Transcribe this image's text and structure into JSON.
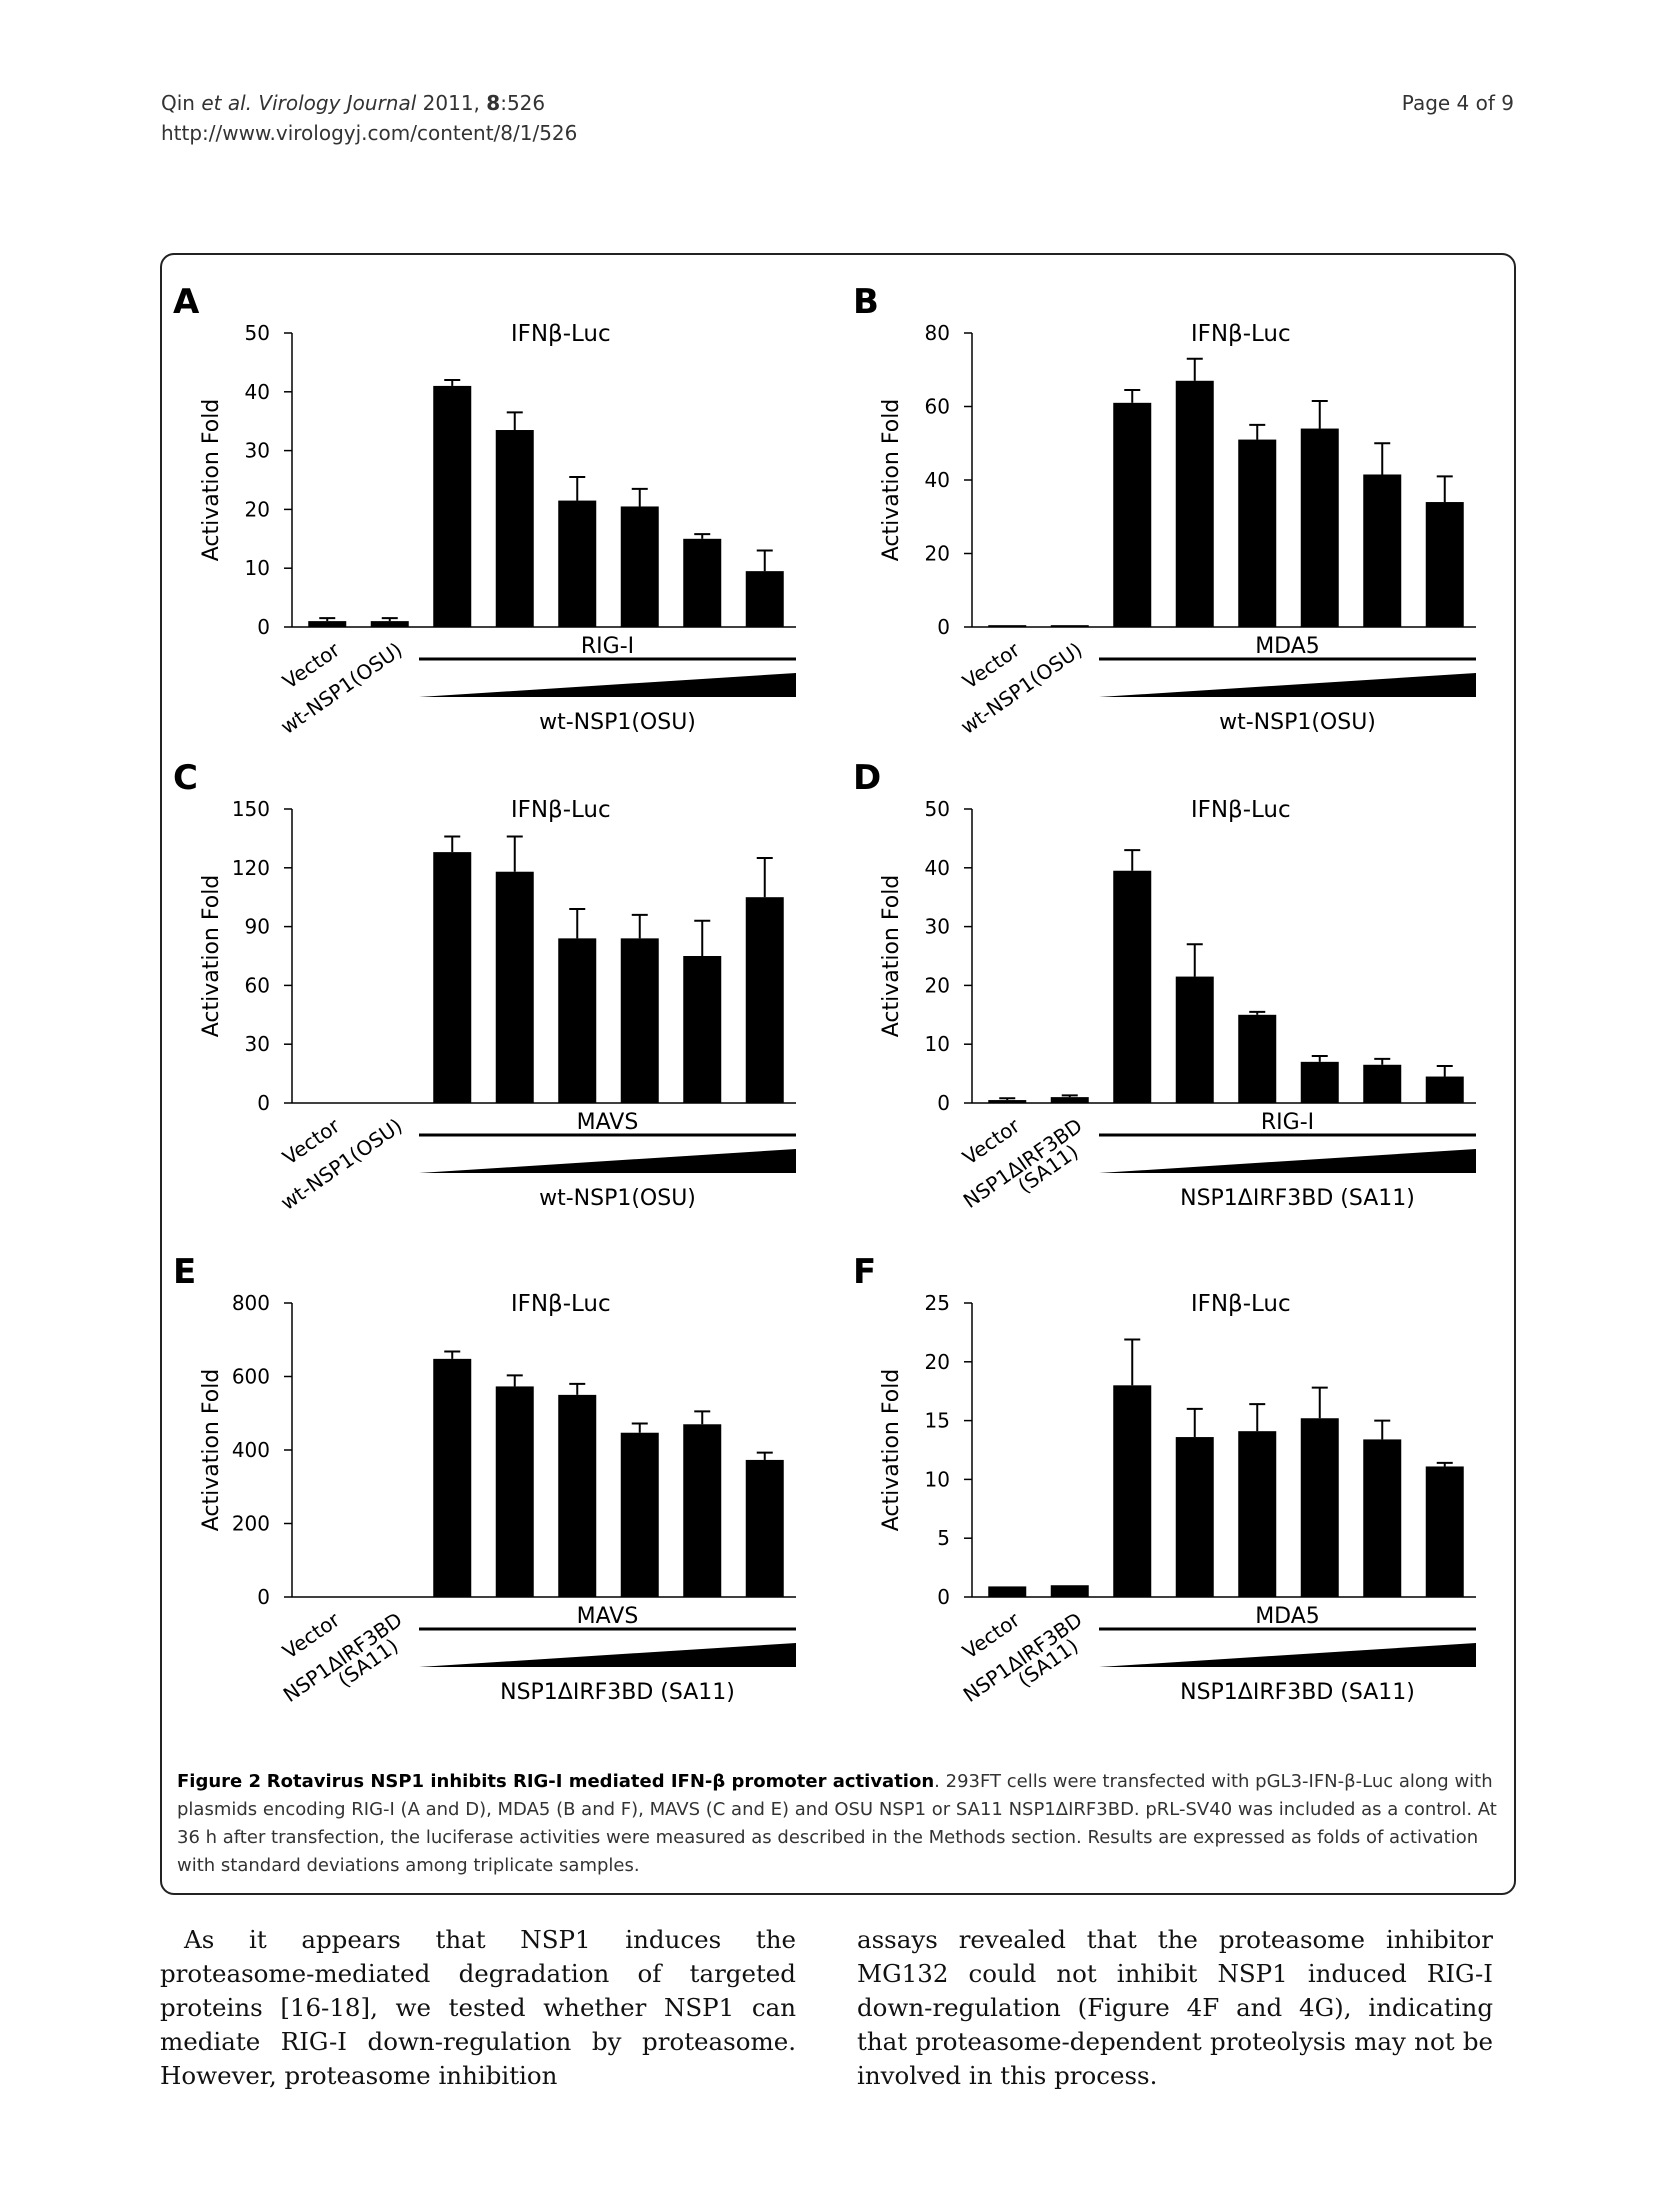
{
  "header": {
    "left_line1_prefix": "Qin ",
    "left_line1_etal": "et al.",
    "left_line1_journal": " Virology Journal",
    "left_line1_year": " 2011, ",
    "left_line1_volume": "8",
    "left_line1_article": ":526",
    "left_line2": "http://www.virologyj.com/content/8/1/526",
    "right": "Page 4 of 9"
  },
  "chart_data": [
    {
      "panel": "A",
      "type": "bar",
      "title": "IFNβ-Luc",
      "ylabel": "Activation Fold",
      "ylim": [
        0,
        50
      ],
      "yticks": [
        0,
        10,
        20,
        30,
        40,
        50
      ],
      "values": [
        1,
        1,
        41,
        33.5,
        21.5,
        20.5,
        15,
        9.5
      ],
      "errors": [
        0.5,
        0.5,
        1,
        3,
        4,
        3,
        0.8,
        3.5
      ],
      "control_labels": [
        "Vector",
        "wt-NSP1(OSU)"
      ],
      "group_label": "RIG-I",
      "gradient_label": "wt-NSP1(OSU)"
    },
    {
      "panel": "B",
      "type": "bar",
      "title": "IFNβ-Luc",
      "ylabel": "Activation Fold",
      "ylim": [
        0,
        80
      ],
      "yticks": [
        0,
        20,
        40,
        60,
        80
      ],
      "values": [
        0.5,
        0.5,
        61,
        67,
        51,
        54,
        41.5,
        34
      ],
      "errors": [
        0,
        0,
        3.5,
        6,
        4,
        7.5,
        8.5,
        7
      ],
      "control_labels": [
        "Vector",
        "wt-NSP1(OSU)"
      ],
      "group_label": "MDA5",
      "gradient_label": "wt-NSP1(OSU)"
    },
    {
      "panel": "C",
      "type": "bar",
      "title": "IFNβ-Luc",
      "ylabel": "Activation Fold",
      "ylim": [
        0,
        150
      ],
      "yticks": [
        0,
        30,
        60,
        90,
        120,
        150
      ],
      "values": [
        0,
        0,
        128,
        118,
        84,
        84,
        75,
        105
      ],
      "errors": [
        0,
        0,
        8,
        18,
        15,
        12,
        18,
        20
      ],
      "control_labels": [
        "Vector",
        "wt-NSP1(OSU)"
      ],
      "group_label": "MAVS",
      "gradient_label": "wt-NSP1(OSU)"
    },
    {
      "panel": "D",
      "type": "bar",
      "title": "IFNβ-Luc",
      "ylabel": "Activation Fold",
      "ylim": [
        0,
        50
      ],
      "yticks": [
        0,
        10,
        20,
        30,
        40,
        50
      ],
      "values": [
        0.5,
        1,
        39.5,
        21.5,
        15,
        7,
        6.5,
        4.5
      ],
      "errors": [
        0.3,
        0.3,
        3.5,
        5.5,
        0.5,
        1,
        1,
        1.8
      ],
      "control_labels": [
        "Vector",
        "NSP1ΔIRF3BD",
        "(SA11)"
      ],
      "group_label": "RIG-I",
      "gradient_label": "NSP1ΔIRF3BD (SA11)"
    },
    {
      "panel": "E",
      "type": "bar",
      "title": "IFNβ-Luc",
      "ylabel": "Activation Fold",
      "ylim": [
        0,
        800
      ],
      "yticks": [
        0,
        200,
        400,
        600,
        800
      ],
      "values": [
        0,
        0,
        648,
        573,
        550,
        447,
        470,
        373
      ],
      "errors": [
        0,
        0,
        20,
        30,
        30,
        25,
        35,
        20
      ],
      "control_labels": [
        "Vector",
        "NSP1ΔIRF3BD",
        "(SA11)"
      ],
      "group_label": "MAVS",
      "gradient_label": "NSP1ΔIRF3BD (SA11)"
    },
    {
      "panel": "F",
      "type": "bar",
      "title": "IFNβ-Luc",
      "ylabel": "Activation Fold",
      "ylim": [
        0,
        25
      ],
      "yticks": [
        0,
        5,
        10,
        15,
        20,
        25
      ],
      "values": [
        0.9,
        1,
        18,
        13.6,
        14.1,
        15.2,
        13.4,
        11.1
      ],
      "errors": [
        0,
        0,
        3.9,
        2.4,
        2.3,
        2.6,
        1.6,
        0.3
      ],
      "control_labels": [
        "Vector",
        "NSP1ΔIRF3BD",
        "(SA11)"
      ],
      "group_label": "MDA5",
      "gradient_label": "NSP1ΔIRF3BD (SA11)"
    }
  ],
  "caption": {
    "label": "Figure 2",
    "title": "Rotavirus NSP1 inhibits RIG-I mediated IFN-β promoter activation",
    "text": ". 293FT cells were transfected with pGL3-IFN-β-Luc along with plasmids encoding RIG-I (A and D), MDA5 (B and F), MAVS (C and E) and OSU NSP1 or SA11 NSP1ΔIRF3BD. pRL-SV40 was included as a control. At 36 h after transfection, the luciferase activities were measured as described in the Methods section. Results are expressed as folds of activation with standard deviations among triplicate samples."
  },
  "body": {
    "left_col": "As it appears that NSP1 induces the proteasome-mediated degradation of targeted proteins [16-18], we tested whether NSP1 can mediate RIG-I down-regulation by proteasome. However, proteasome inhibition",
    "right_col": "assays revealed that the proteasome inhibitor MG132 could not inhibit NSP1 induced RIG-I down-regulation (Figure 4F and 4G), indicating that proteasome-dependent proteolysis may not be involved in this process."
  }
}
